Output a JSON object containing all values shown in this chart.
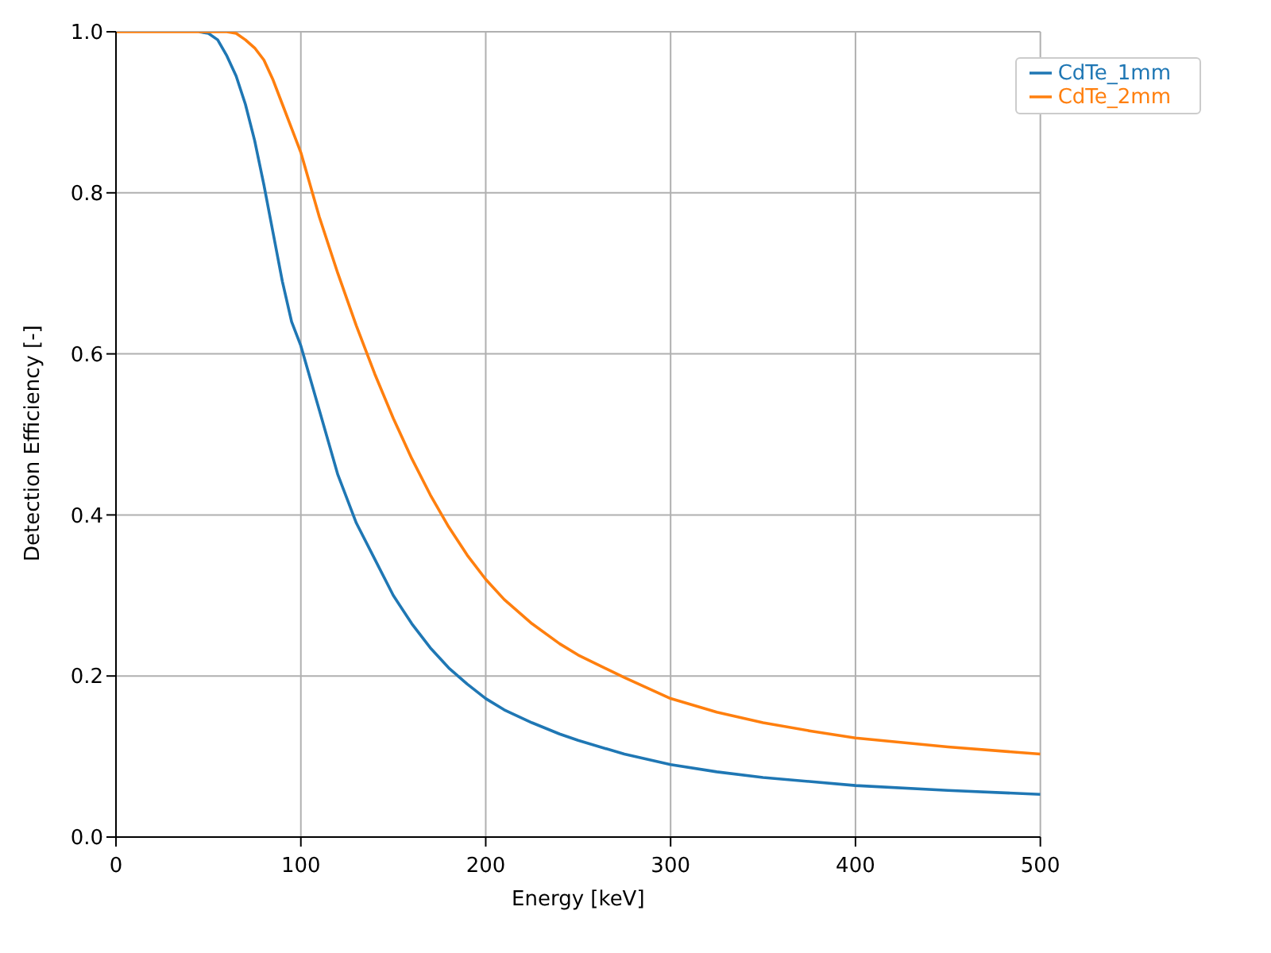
{
  "chart_data": {
    "type": "line",
    "xlabel": "Energy [keV]",
    "ylabel": "Detection Efficiency [-]",
    "x": [
      0,
      20,
      40,
      45,
      50,
      55,
      60,
      65,
      70,
      75,
      80,
      85,
      90,
      95,
      100,
      110,
      120,
      130,
      140,
      150,
      160,
      170,
      180,
      190,
      200,
      210,
      225,
      240,
      250,
      275,
      300,
      325,
      350,
      375,
      400,
      450,
      500
    ],
    "series": [
      {
        "name": "CdTe_1mm",
        "color": "#1f77b4",
        "values": [
          null,
          null,
          null,
          1,
          0.998,
          0.99,
          0.97,
          0.945,
          0.91,
          0.865,
          0.81,
          0.75,
          0.69,
          0.64,
          0.61,
          0.53,
          0.45,
          0.39,
          0.345,
          0.3,
          0.265,
          0.235,
          0.21,
          0.19,
          0.172,
          0.158,
          0.142,
          0.128,
          0.12,
          0.103,
          0.09,
          0.081,
          0.074,
          0.069,
          0.064,
          0.058,
          0.053
        ]
      },
      {
        "name": "CdTe_2mm",
        "color": "#ff7f0e",
        "values": [
          1,
          1,
          1,
          1,
          1,
          1,
          1,
          0.998,
          0.99,
          0.98,
          0.965,
          0.94,
          0.91,
          0.88,
          0.85,
          0.77,
          0.7,
          0.635,
          0.575,
          0.52,
          0.47,
          0.425,
          0.385,
          0.35,
          0.32,
          0.295,
          0.265,
          0.24,
          0.226,
          0.198,
          0.172,
          0.155,
          0.142,
          0.132,
          0.123,
          0.112,
          0.103
        ]
      }
    ],
    "xlim": [
      0,
      500
    ],
    "xticks": [
      0,
      100,
      200,
      300,
      400,
      500
    ],
    "ylim": [
      0,
      1
    ],
    "yticks": [
      {
        "value": 0,
        "label": "0.0"
      },
      {
        "value": 0.2,
        "label": "0.2"
      },
      {
        "value": 0.4,
        "label": "0.4"
      },
      {
        "value": 0.6,
        "label": "0.6"
      },
      {
        "value": 0.8,
        "label": "0.8"
      },
      {
        "value": 1,
        "label": "1.0"
      }
    ],
    "grid": true,
    "legend": "top right",
    "marker": "none",
    "line_style": "solid"
  }
}
